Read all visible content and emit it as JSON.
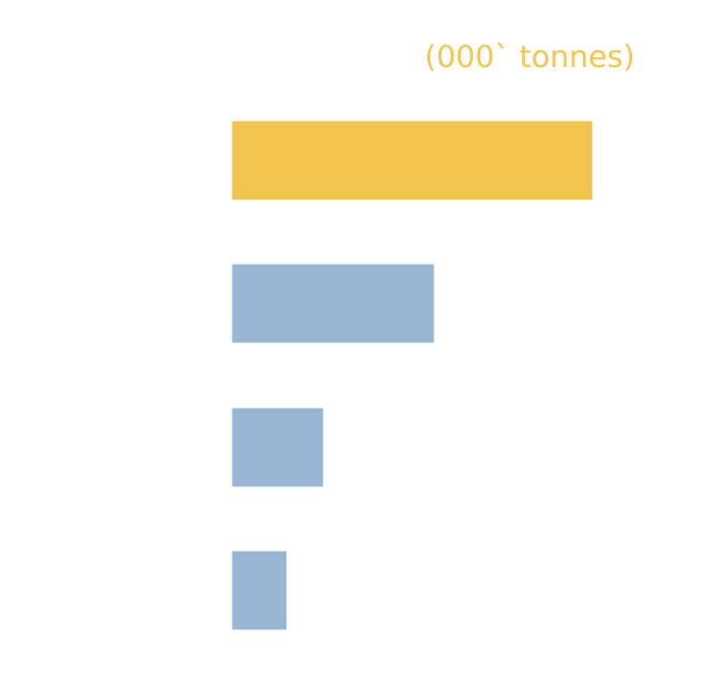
{
  "chart_data": {
    "type": "bar",
    "orientation": "horizontal",
    "unit_label": "(000` tonnes)",
    "title": "",
    "xlabel": "",
    "ylabel": "",
    "xlim": [
      0,
      100
    ],
    "grid": false,
    "legend": "none",
    "series": [
      {
        "values": [
          100,
          56,
          25,
          15
        ]
      }
    ],
    "bar_colors": [
      "#f2c54f",
      "#96b6d3",
      "#96b6d3",
      "#96b6d3"
    ],
    "unit_color": "#f2c54f"
  }
}
